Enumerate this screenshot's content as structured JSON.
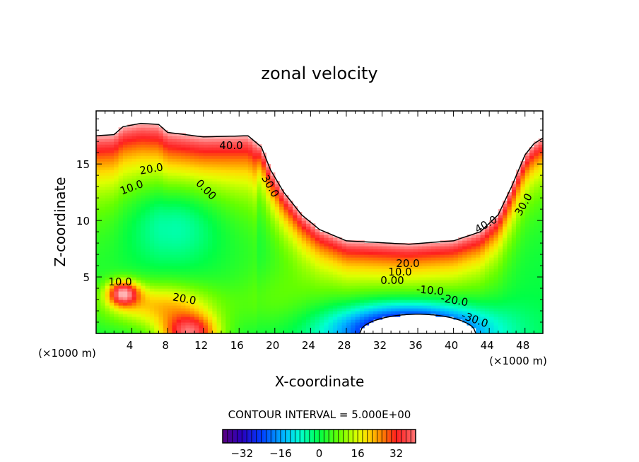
{
  "chart_data": {
    "type": "heatmap",
    "subtype": "filled contour",
    "title": "zonal velocity",
    "xlabel": "X-coordinate",
    "ylabel": "Z-coordinate",
    "x_unit_label": "(×1000 m)",
    "z_unit_label": "(×1000 m)",
    "xlim": [
      0,
      50
    ],
    "ylim": [
      0,
      19.7
    ],
    "xticks": [
      4,
      8,
      12,
      16,
      20,
      24,
      28,
      32,
      36,
      40,
      44,
      48
    ],
    "yticks": [
      5,
      10,
      15
    ],
    "contour_interval_text": "CONTOUR INTERVAL = 5.000E+00",
    "contour_interval": 5,
    "colorbar": {
      "range": [
        -40,
        40
      ],
      "ticks": [
        -32,
        -16,
        0,
        16,
        32
      ]
    },
    "contour_labels": [
      "40.0",
      "20.0",
      "10.0",
      "0.00",
      "30.0",
      "40.0",
      "30.0",
      "20.0",
      "10.0",
      "0.00",
      "-10.0",
      "-20.0",
      "-30.0",
      "10.0",
      "20.0"
    ],
    "value_range": [
      -38,
      42
    ]
  }
}
